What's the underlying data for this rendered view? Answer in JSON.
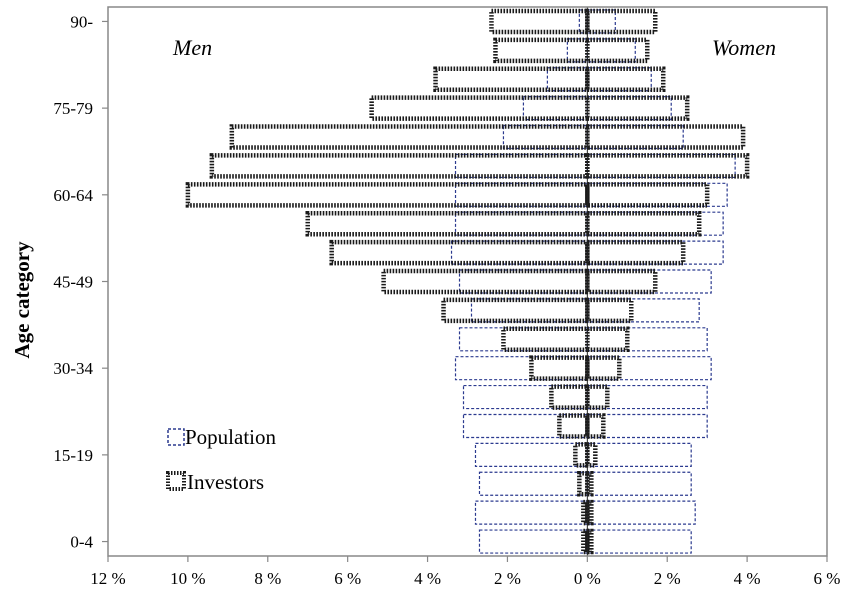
{
  "chart_data": {
    "type": "bar",
    "orientation": "horizontal",
    "layout": "population-pyramid",
    "ylabel": "Age category",
    "xlim": [
      -12,
      6
    ],
    "x_ticks": [
      {
        "value": -12,
        "label": "12 %"
      },
      {
        "value": -10,
        "label": "10 %"
      },
      {
        "value": -8,
        "label": "8 %"
      },
      {
        "value": -6,
        "label": "6 %"
      },
      {
        "value": -4,
        "label": "4 %"
      },
      {
        "value": -2,
        "label": "2 %"
      },
      {
        "value": 0,
        "label": "0 %"
      },
      {
        "value": 2,
        "label": "2 %"
      },
      {
        "value": 4,
        "label": "4 %"
      },
      {
        "value": 6,
        "label": "6 %"
      }
    ],
    "y_tick_labels": [
      {
        "index": 0,
        "label": "0-4"
      },
      {
        "index": 3,
        "label": "15-19"
      },
      {
        "index": 6,
        "label": "30-34"
      },
      {
        "index": 9,
        "label": "45-49"
      },
      {
        "index": 12,
        "label": "60-64"
      },
      {
        "index": 15,
        "label": "75-79"
      },
      {
        "index": 18,
        "label": "90-"
      }
    ],
    "categories_count": 19,
    "annotations": {
      "left": "Men",
      "right": "Women"
    },
    "legend_position": "bottom-left",
    "series": [
      {
        "name": "Population",
        "color": "#2b3a8f",
        "style": "dashed-outline",
        "men": [
          2.7,
          2.8,
          2.7,
          2.8,
          3.1,
          3.1,
          3.3,
          3.2,
          2.9,
          3.2,
          3.4,
          3.3,
          3.3,
          3.3,
          2.1,
          1.6,
          1.0,
          0.5,
          0.2
        ],
        "women": [
          2.6,
          2.7,
          2.6,
          2.6,
          3.0,
          3.0,
          3.1,
          3.0,
          2.8,
          3.1,
          3.4,
          3.4,
          3.5,
          3.7,
          2.4,
          2.1,
          1.6,
          1.2,
          0.7
        ]
      },
      {
        "name": "Investors",
        "color": "#1a1a1a",
        "style": "dotted-thick-outline",
        "men": [
          0.1,
          0.1,
          0.2,
          0.3,
          0.7,
          0.9,
          1.4,
          2.1,
          3.6,
          5.1,
          6.4,
          7.0,
          10.0,
          9.4,
          8.9,
          5.4,
          3.8,
          2.3,
          2.4
        ],
        "women": [
          0.1,
          0.1,
          0.1,
          0.2,
          0.4,
          0.5,
          0.8,
          1.0,
          1.1,
          1.7,
          2.4,
          2.8,
          3.0,
          4.0,
          3.9,
          2.5,
          1.9,
          1.5,
          1.7
        ]
      }
    ]
  }
}
